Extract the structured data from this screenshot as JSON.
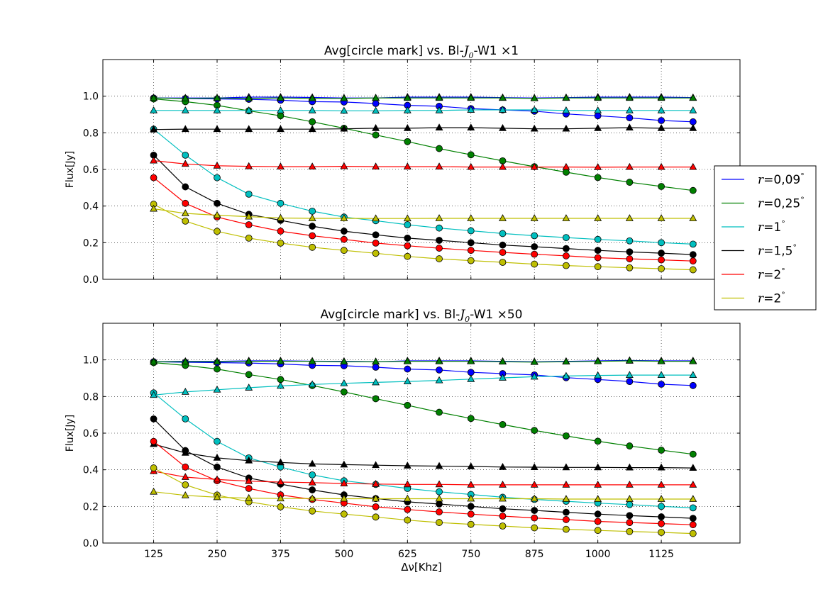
{
  "chart_data": [
    {
      "type": "line",
      "title": "Avg[circle mark] vs. Bl-J0-W1 ×1",
      "title_parts": {
        "prefix": "Avg[circle mark] vs. Bl-",
        "italic_main": "J",
        "subscript": "0",
        "suffix": "-W1 ×1"
      },
      "ylabel": "Flux[Jy]",
      "xlabel": "",
      "xlim": [
        25,
        1280
      ],
      "ylim": [
        0,
        1.2
      ],
      "x_ticks": [
        125,
        250,
        375,
        500,
        625,
        750,
        875,
        1000,
        1125
      ],
      "y_ticks": [
        0.0,
        0.2,
        0.4,
        0.6,
        0.8,
        1.0
      ],
      "grid": true,
      "x": [
        125,
        187.5,
        250,
        312.5,
        375,
        437.5,
        500,
        562.5,
        625,
        687.5,
        750,
        812.5,
        875,
        937.5,
        1000,
        1062.5,
        1125,
        1187.5
      ],
      "series": [
        {
          "color": "#0000ff",
          "marker": "circle",
          "values": [
            0.99,
            0.987,
            0.985,
            0.983,
            0.978,
            0.97,
            0.968,
            0.96,
            0.95,
            0.945,
            0.932,
            0.925,
            0.918,
            0.903,
            0.893,
            0.882,
            0.867,
            0.86
          ]
        },
        {
          "color": "#0000ff",
          "marker": "triangle",
          "values": [
            0.99,
            0.99,
            0.99,
            0.995,
            0.995,
            0.993,
            0.99,
            0.99,
            0.995,
            0.995,
            0.995,
            0.992,
            0.99,
            0.992,
            0.995,
            0.995,
            0.995,
            0.992
          ]
        },
        {
          "color": "#008000",
          "marker": "circle",
          "values": [
            0.985,
            0.97,
            0.95,
            0.92,
            0.893,
            0.86,
            0.825,
            0.788,
            0.752,
            0.714,
            0.68,
            0.647,
            0.615,
            0.585,
            0.556,
            0.53,
            0.507,
            0.485
          ]
        },
        {
          "color": "#008000",
          "marker": "triangle",
          "values": [
            0.99,
            0.988,
            0.99,
            0.988,
            0.99,
            0.988,
            0.988,
            0.99,
            0.99,
            0.99,
            0.99,
            0.99,
            0.988,
            0.99,
            0.99,
            0.99,
            0.99,
            0.99
          ]
        },
        {
          "color": "#00bfbf",
          "marker": "circle",
          "values": [
            0.82,
            0.678,
            0.555,
            0.465,
            0.415,
            0.372,
            0.34,
            0.32,
            0.298,
            0.28,
            0.265,
            0.25,
            0.238,
            0.228,
            0.218,
            0.21,
            0.2,
            0.192
          ]
        },
        {
          "color": "#00bfbf",
          "marker": "triangle",
          "values": [
            0.922,
            0.922,
            0.922,
            0.922,
            0.922,
            0.922,
            0.92,
            0.92,
            0.922,
            0.922,
            0.925,
            0.925,
            0.925,
            0.922,
            0.922,
            0.922,
            0.922,
            0.922
          ]
        },
        {
          "color": "#000000",
          "marker": "circle",
          "values": [
            0.678,
            0.505,
            0.415,
            0.355,
            0.322,
            0.29,
            0.263,
            0.243,
            0.225,
            0.213,
            0.2,
            0.187,
            0.178,
            0.168,
            0.158,
            0.15,
            0.143,
            0.135
          ]
        },
        {
          "color": "#000000",
          "marker": "triangle",
          "values": [
            0.818,
            0.82,
            0.82,
            0.82,
            0.82,
            0.82,
            0.822,
            0.825,
            0.825,
            0.828,
            0.828,
            0.825,
            0.822,
            0.822,
            0.825,
            0.828,
            0.825,
            0.825
          ]
        },
        {
          "color": "#ff0000",
          "marker": "circle",
          "values": [
            0.555,
            0.415,
            0.34,
            0.298,
            0.263,
            0.238,
            0.218,
            0.198,
            0.183,
            0.17,
            0.158,
            0.147,
            0.137,
            0.128,
            0.118,
            0.112,
            0.106,
            0.1
          ]
        },
        {
          "color": "#ff0000",
          "marker": "triangle",
          "values": [
            0.648,
            0.63,
            0.62,
            0.617,
            0.615,
            0.615,
            0.617,
            0.615,
            0.615,
            0.615,
            0.613,
            0.613,
            0.613,
            0.613,
            0.612,
            0.613,
            0.613,
            0.613
          ]
        },
        {
          "color": "#bfbf00",
          "marker": "circle",
          "values": [
            0.41,
            0.318,
            0.262,
            0.225,
            0.198,
            0.175,
            0.158,
            0.142,
            0.125,
            0.112,
            0.102,
            0.093,
            0.083,
            0.075,
            0.069,
            0.063,
            0.058,
            0.052
          ]
        },
        {
          "color": "#bfbf00",
          "marker": "triangle",
          "values": [
            0.385,
            0.36,
            0.35,
            0.342,
            0.335,
            0.333,
            0.333,
            0.332,
            0.332,
            0.333,
            0.333,
            0.333,
            0.333,
            0.333,
            0.333,
            0.333,
            0.333,
            0.333
          ]
        }
      ]
    },
    {
      "type": "line",
      "title": "Avg[circle mark] vs. Bl-J0-W1 ×50",
      "title_parts": {
        "prefix": "Avg[circle mark] vs. Bl-",
        "italic_main": "J",
        "subscript": "0",
        "suffix": "-W1 ×50"
      },
      "ylabel": "Flux[Jy]",
      "xlabel": "Δν[Khz]",
      "xlim": [
        25,
        1280
      ],
      "ylim": [
        0,
        1.2
      ],
      "x_ticks": [
        125,
        250,
        375,
        500,
        625,
        750,
        875,
        1000,
        1125
      ],
      "y_ticks": [
        0.0,
        0.2,
        0.4,
        0.6,
        0.8,
        1.0
      ],
      "grid": true,
      "x": [
        125,
        187.5,
        250,
        312.5,
        375,
        437.5,
        500,
        562.5,
        625,
        687.5,
        750,
        812.5,
        875,
        937.5,
        1000,
        1062.5,
        1125,
        1187.5
      ],
      "series": [
        {
          "color": "#0000ff",
          "marker": "circle",
          "values": [
            0.99,
            0.987,
            0.985,
            0.983,
            0.978,
            0.97,
            0.968,
            0.96,
            0.95,
            0.945,
            0.932,
            0.925,
            0.918,
            0.903,
            0.893,
            0.882,
            0.867,
            0.86
          ]
        },
        {
          "color": "#0000ff",
          "marker": "triangle",
          "values": [
            0.99,
            0.992,
            0.992,
            0.995,
            0.995,
            0.993,
            0.992,
            0.99,
            0.995,
            0.995,
            0.995,
            0.992,
            0.99,
            0.992,
            0.995,
            0.997,
            0.995,
            0.995
          ]
        },
        {
          "color": "#008000",
          "marker": "circle",
          "values": [
            0.985,
            0.97,
            0.95,
            0.92,
            0.893,
            0.86,
            0.825,
            0.788,
            0.752,
            0.714,
            0.68,
            0.647,
            0.615,
            0.585,
            0.556,
            0.53,
            0.507,
            0.485
          ]
        },
        {
          "color": "#008000",
          "marker": "triangle",
          "values": [
            0.99,
            0.99,
            0.99,
            0.992,
            0.992,
            0.992,
            0.99,
            0.99,
            0.992,
            0.992,
            0.992,
            0.99,
            0.988,
            0.99,
            0.992,
            0.995,
            0.992,
            0.992
          ]
        },
        {
          "color": "#00bfbf",
          "marker": "circle",
          "values": [
            0.82,
            0.678,
            0.555,
            0.465,
            0.415,
            0.372,
            0.34,
            0.32,
            0.298,
            0.28,
            0.265,
            0.25,
            0.238,
            0.228,
            0.218,
            0.21,
            0.2,
            0.192
          ]
        },
        {
          "color": "#00bfbf",
          "marker": "triangle",
          "values": [
            0.808,
            0.825,
            0.837,
            0.848,
            0.858,
            0.866,
            0.872,
            0.877,
            0.882,
            0.888,
            0.895,
            0.902,
            0.908,
            0.912,
            0.915,
            0.917,
            0.917,
            0.917
          ]
        },
        {
          "color": "#000000",
          "marker": "circle",
          "values": [
            0.678,
            0.505,
            0.415,
            0.355,
            0.322,
            0.29,
            0.263,
            0.243,
            0.225,
            0.213,
            0.2,
            0.187,
            0.178,
            0.168,
            0.158,
            0.15,
            0.143,
            0.135
          ]
        },
        {
          "color": "#000000",
          "marker": "triangle",
          "values": [
            0.54,
            0.492,
            0.465,
            0.45,
            0.44,
            0.432,
            0.428,
            0.425,
            0.422,
            0.42,
            0.418,
            0.415,
            0.414,
            0.413,
            0.413,
            0.412,
            0.412,
            0.41
          ]
        },
        {
          "color": "#ff0000",
          "marker": "circle",
          "values": [
            0.555,
            0.415,
            0.34,
            0.298,
            0.263,
            0.238,
            0.218,
            0.198,
            0.183,
            0.17,
            0.158,
            0.147,
            0.137,
            0.128,
            0.118,
            0.112,
            0.106,
            0.1
          ]
        },
        {
          "color": "#ff0000",
          "marker": "triangle",
          "values": [
            0.392,
            0.36,
            0.347,
            0.338,
            0.333,
            0.33,
            0.325,
            0.322,
            0.32,
            0.32,
            0.318,
            0.318,
            0.318,
            0.318,
            0.318,
            0.318,
            0.318,
            0.318
          ]
        },
        {
          "color": "#bfbf00",
          "marker": "circle",
          "values": [
            0.41,
            0.318,
            0.262,
            0.225,
            0.198,
            0.175,
            0.158,
            0.142,
            0.125,
            0.112,
            0.102,
            0.093,
            0.083,
            0.075,
            0.069,
            0.063,
            0.058,
            0.052
          ]
        },
        {
          "color": "#bfbf00",
          "marker": "triangle",
          "values": [
            0.28,
            0.26,
            0.25,
            0.245,
            0.243,
            0.243,
            0.242,
            0.242,
            0.242,
            0.242,
            0.242,
            0.242,
            0.242,
            0.24,
            0.24,
            0.24,
            0.24,
            0.24
          ]
        }
      ]
    }
  ],
  "legend": {
    "placement": "right",
    "entries": [
      {
        "var": "r",
        "eq": "=",
        "value": "0,09",
        "unit": "°",
        "color": "#0000ff"
      },
      {
        "var": "r",
        "eq": "=",
        "value": "0,25",
        "unit": "°",
        "color": "#008000"
      },
      {
        "var": "r",
        "eq": "=",
        "value": "1",
        "unit": "°",
        "color": "#00bfbf"
      },
      {
        "var": "r",
        "eq": "=",
        "value": "1,5",
        "unit": "°",
        "color": "#000000"
      },
      {
        "var": "r",
        "eq": "=",
        "value": "2",
        "unit": "°",
        "color": "#ff0000"
      },
      {
        "var": "r",
        "eq": "=",
        "value": "2",
        "unit": "°",
        "color": "#bfbf00"
      }
    ]
  }
}
